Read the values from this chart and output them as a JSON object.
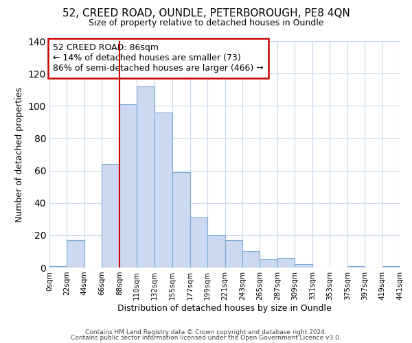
{
  "title1": "52, CREED ROAD, OUNDLE, PETERBOROUGH, PE8 4QN",
  "title2": "Size of property relative to detached houses in Oundle",
  "xlabel": "Distribution of detached houses by size in Oundle",
  "ylabel": "Number of detached properties",
  "bin_edges": [
    0,
    22,
    44,
    66,
    88,
    110,
    132,
    155,
    177,
    199,
    221,
    243,
    265,
    287,
    309,
    331,
    353,
    375,
    397,
    419,
    441
  ],
  "bar_heights": [
    1,
    17,
    0,
    64,
    101,
    112,
    96,
    59,
    31,
    20,
    17,
    10,
    5,
    6,
    2,
    0,
    0,
    1,
    0,
    1
  ],
  "bar_color": "#ccd9f0",
  "bar_edgecolor": "#7fa8d0",
  "vline_x": 88,
  "vline_color": "#cc0000",
  "ylim": [
    0,
    140
  ],
  "yticks": [
    0,
    20,
    40,
    60,
    80,
    100,
    120,
    140
  ],
  "xtick_labels": [
    "0sqm",
    "22sqm",
    "44sqm",
    "66sqm",
    "88sqm",
    "110sqm",
    "132sqm",
    "155sqm",
    "177sqm",
    "199sqm",
    "221sqm",
    "243sqm",
    "265sqm",
    "287sqm",
    "309sqm",
    "331sqm",
    "353sqm",
    "375sqm",
    "397sqm",
    "419sqm",
    "441sqm"
  ],
  "annotation_title": "52 CREED ROAD: 86sqm",
  "annotation_line1": "← 14% of detached houses are smaller (73)",
  "annotation_line2": "86% of semi-detached houses are larger (466) →",
  "annotation_box_color": "#ffffff",
  "annotation_box_edgecolor": "#cc0000",
  "footer1": "Contains HM Land Registry data © Crown copyright and database right 2024.",
  "footer2": "Contains public sector information licensed under the Open Government Licence v3.0.",
  "bg_color": "#ffffff",
  "grid_color": "#c8d8ec"
}
